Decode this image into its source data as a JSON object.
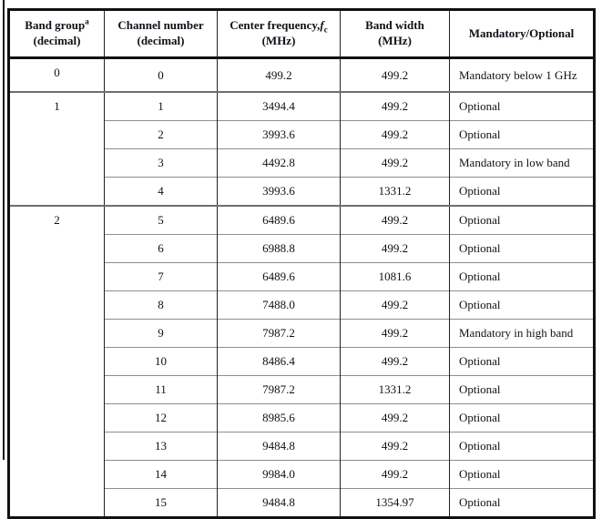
{
  "colors": {
    "outer_border": "#111111",
    "vertical_line": "#222222",
    "row_line": "#8e8e8e",
    "band_group_line": "#6e6e6e",
    "text": "#101018"
  },
  "table": {
    "columns": [
      {
        "title": "Band group",
        "superscript": "a",
        "subtitle": "(decimal)"
      },
      {
        "title": "Channel number",
        "subtitle": "(decimal)"
      },
      {
        "title": "Center frequency,",
        "symbol": "f",
        "symbol_sub": "c",
        "subtitle": "(MHz)"
      },
      {
        "title": "Band width",
        "subtitle": "(MHz)"
      },
      {
        "title": "Mandatory/Optional",
        "subtitle": ""
      }
    ],
    "rows": [
      {
        "band_group": "0",
        "band_rowspan": 1,
        "channel": "0",
        "center_frequency": "499.2",
        "bandwidth": "499.2",
        "mandatory": "Mandatory below 1 GHz"
      },
      {
        "band_group": "1",
        "band_rowspan": 4,
        "channel": "1",
        "center_frequency": "3494.4",
        "bandwidth": "499.2",
        "mandatory": "Optional"
      },
      {
        "channel": "2",
        "center_frequency": "3993.6",
        "bandwidth": "499.2",
        "mandatory": "Optional"
      },
      {
        "channel": "3",
        "center_frequency": "4492.8",
        "bandwidth": "499.2",
        "mandatory": "Mandatory in low band"
      },
      {
        "channel": "4",
        "center_frequency": "3993.6",
        "bandwidth": "1331.2",
        "mandatory": "Optional"
      },
      {
        "band_group": "2",
        "band_rowspan": 11,
        "channel": "5",
        "center_frequency": "6489.6",
        "bandwidth": "499.2",
        "mandatory": "Optional"
      },
      {
        "channel": "6",
        "center_frequency": "6988.8",
        "bandwidth": "499.2",
        "mandatory": "Optional"
      },
      {
        "channel": "7",
        "center_frequency": "6489.6",
        "bandwidth": "1081.6",
        "mandatory": "Optional"
      },
      {
        "channel": "8",
        "center_frequency": "7488.0",
        "bandwidth": "499.2",
        "mandatory": "Optional"
      },
      {
        "channel": "9",
        "center_frequency": "7987.2",
        "bandwidth": "499.2",
        "mandatory": "Mandatory in high band"
      },
      {
        "channel": "10",
        "center_frequency": "8486.4",
        "bandwidth": "499.2",
        "mandatory": "Optional"
      },
      {
        "channel": "11",
        "center_frequency": "7987.2",
        "bandwidth": "1331.2",
        "mandatory": "Optional"
      },
      {
        "channel": "12",
        "center_frequency": "8985.6",
        "bandwidth": "499.2",
        "mandatory": "Optional"
      },
      {
        "channel": "13",
        "center_frequency": "9484.8",
        "bandwidth": "499.2",
        "mandatory": "Optional"
      },
      {
        "channel": "14",
        "center_frequency": "9984.0",
        "bandwidth": "499.2",
        "mandatory": "Optional"
      },
      {
        "channel": "15",
        "center_frequency": "9484.8",
        "bandwidth": "1354.97",
        "mandatory": "Optional"
      }
    ]
  }
}
